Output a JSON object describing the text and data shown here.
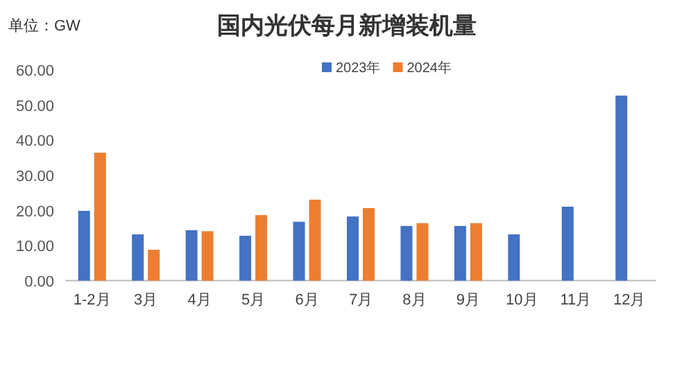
{
  "chart_data": {
    "type": "bar",
    "title": "国内光伏每月新增装机量",
    "annotations": [
      "单位：GW"
    ],
    "categories": [
      "1-2月",
      "3月",
      "4月",
      "5月",
      "6月",
      "7月",
      "8月",
      "9月",
      "10月",
      "11月",
      "12月"
    ],
    "series": [
      {
        "name": "2023年",
        "color": "#4472c4",
        "values": [
          19.9,
          13.2,
          14.4,
          12.8,
          16.8,
          18.3,
          15.6,
          15.6,
          13.2,
          21.1,
          52.8
        ]
      },
      {
        "name": "2024年",
        "color": "#ed7d31",
        "values": [
          36.5,
          8.8,
          14.1,
          18.7,
          23.1,
          20.7,
          16.4,
          16.4,
          null,
          null,
          null
        ]
      }
    ],
    "ylim": [
      0,
      60
    ],
    "yticks": [
      {
        "value": 0,
        "label": "0.00"
      },
      {
        "value": 10,
        "label": "10.00"
      },
      {
        "value": 20,
        "label": "20.00"
      },
      {
        "value": 30,
        "label": "30.00"
      },
      {
        "value": 40,
        "label": "40.00"
      },
      {
        "value": 50,
        "label": "50.00"
      },
      {
        "value": 60,
        "label": "60.00"
      }
    ],
    "grid": false,
    "legend": "top"
  }
}
